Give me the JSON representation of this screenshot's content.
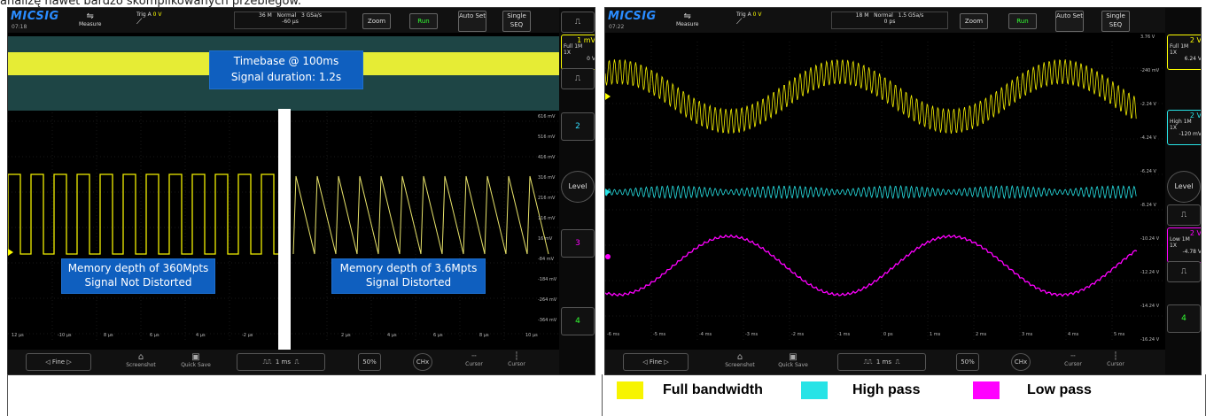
{
  "caption": "analizę nawet bardzo skomplikowanych przebiegów.",
  "left": {
    "logo": "MICSIG",
    "time": "07:18",
    "measure": "Measure",
    "trig": "Trig A",
    "trig_val": "0 V",
    "mem": "36 M",
    "mode": "Normal",
    "rate": "3 GSa/s",
    "offset": "-60 μs",
    "zoom": "Zoom",
    "run": "Run",
    "auto": "Auto Set",
    "single": "Single SEQ",
    "box_top_1": "Timebase @ 100ms",
    "box_top_2": "Signal duration: 1.2s",
    "box_l1": "Memory depth of 360Mpts",
    "box_l2": "Signal Not Distorted",
    "box_r1": "Memory depth of 3.6Mpts",
    "box_r2": "Signal Distorted",
    "ch1": {
      "scale": "1 mV",
      "l1": "Full",
      "l2": "1X",
      "l3": "0 V",
      "imp": "1M"
    },
    "ch2": "2",
    "ch3": "3",
    "ch4": "4",
    "level": "Level",
    "right_scale": [
      "616 mV",
      "516 mV",
      "416 mV",
      "316 mV",
      "216 mV",
      "116 mV",
      "16 mV",
      "-84 mV",
      "-184 mV",
      "-264 mV",
      "-364 mV"
    ],
    "x_ticks": [
      "12 μs",
      "-10 μs",
      "8 μs",
      "6 μs",
      "4 μs",
      "-2 μs",
      "2 μs",
      "4 μs",
      "6 μs",
      "8 μs",
      "10 μs"
    ],
    "bottom": {
      "fine": "Fine",
      "screenshot": "Screenshot",
      "quick": "Quick Save",
      "time": "1 ms",
      "pct": "50%",
      "chx": "CHx",
      "cursor1": "Cursor",
      "cursor2": "Cursor"
    }
  },
  "right": {
    "logo": "MICSIG",
    "time": "07:22",
    "measure": "Measure",
    "trig": "Trig A",
    "trig_val": "0 V",
    "mem": "18 M",
    "mode": "Normal",
    "rate": "1.5 GSa/s",
    "offset": "0 ps",
    "zoom": "Zoom",
    "run": "Run",
    "auto": "Auto Set",
    "single": "Single SEQ",
    "ch1": {
      "scale": "2 V",
      "l1": "Full",
      "l2": "1X",
      "l3": "6.24 V",
      "imp": "1M"
    },
    "ch2": {
      "scale": "2 V",
      "l1": "High",
      "l2": "1X",
      "l3": "-120 mV",
      "imp": "1M"
    },
    "ch3": {
      "scale": "2 V",
      "l1": "Low",
      "l2": "1X",
      "l3": "-4.78 V",
      "imp": "1M"
    },
    "ch4": "4",
    "level": "Level",
    "right_scale": [
      "3.76 V",
      "-240 mV",
      "-2.24 V",
      "-4.24 V",
      "-6.24 V",
      "-8.24 V",
      "-10.24 V",
      "-12.24 V",
      "-14.24 V",
      "-16.24 V"
    ],
    "x_ticks": [
      "-6 ms",
      "-5 ms",
      "-4 ms",
      "-3 ms",
      "-2 ms",
      "-1 ms",
      "0 ps",
      "1 ms",
      "2 ms",
      "3 ms",
      "4 ms",
      "5 ms"
    ],
    "bottom": {
      "fine": "Fine",
      "screenshot": "Screenshot",
      "quick": "Quick Save",
      "time": "1 ms",
      "pct": "50%",
      "chx": "CHx",
      "cursor1": "Cursor",
      "cursor2": "Cursor"
    }
  },
  "legend": {
    "full": "Full bandwidth",
    "high": "High pass",
    "low": "Low pass",
    "colors": {
      "full": "#f7f400",
      "high": "#27e3e6",
      "low": "#ff00ff"
    }
  }
}
